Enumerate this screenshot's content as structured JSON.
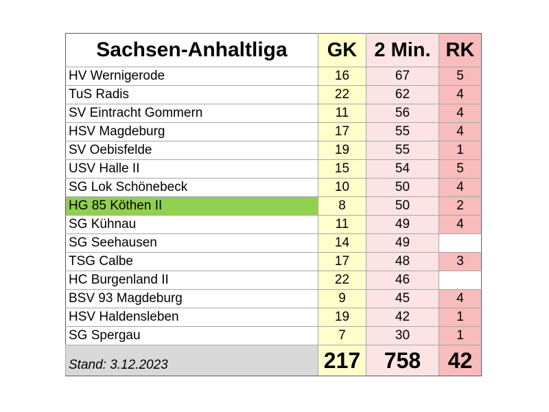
{
  "header": {
    "title": "Sachsen-Anhaltliga",
    "col_gk": "GK",
    "col_min": "2 Min.",
    "col_rk": "RK"
  },
  "rows": [
    {
      "team": "HV Wernigerode",
      "gk": "16",
      "min": "67",
      "rk": "5"
    },
    {
      "team": "TuS Radis",
      "gk": "22",
      "min": "62",
      "rk": "4"
    },
    {
      "team": "SV Eintracht Gommern",
      "gk": "11",
      "min": "56",
      "rk": "4"
    },
    {
      "team": "HSV Magdeburg",
      "gk": "17",
      "min": "55",
      "rk": "4"
    },
    {
      "team": "SV Oebisfelde",
      "gk": "19",
      "min": "55",
      "rk": "1"
    },
    {
      "team": "USV Halle II",
      "gk": "15",
      "min": "54",
      "rk": "5"
    },
    {
      "team": "SG Lok Schönebeck",
      "gk": "10",
      "min": "50",
      "rk": "4"
    },
    {
      "team": "HG 85 Köthen II",
      "gk": "8",
      "min": "50",
      "rk": "2",
      "highlight": true
    },
    {
      "team": "SG Kühnau",
      "gk": "11",
      "min": "49",
      "rk": "4"
    },
    {
      "team": "SG Seehausen",
      "gk": "14",
      "min": "49",
      "rk": ""
    },
    {
      "team": "TSG Calbe",
      "gk": "17",
      "min": "48",
      "rk": "3"
    },
    {
      "team": "HC Burgenland II",
      "gk": "22",
      "min": "46",
      "rk": ""
    },
    {
      "team": "BSV 93 Magdeburg",
      "gk": "9",
      "min": "45",
      "rk": "4"
    },
    {
      "team": "HSV Haldensleben",
      "gk": "19",
      "min": "42",
      "rk": "1"
    },
    {
      "team": "SG Spergau",
      "gk": "7",
      "min": "30",
      "rk": "1"
    }
  ],
  "footer": {
    "stand": "Stand: 3.12.2023",
    "total_gk": "217",
    "total_min": "758",
    "total_rk": "42"
  },
  "colors": {
    "gk": "#ffffcc",
    "min": "#fce4e4",
    "rk": "#f8bcbc",
    "highlight": "#92d050",
    "footer_label": "#d9d9d9"
  }
}
